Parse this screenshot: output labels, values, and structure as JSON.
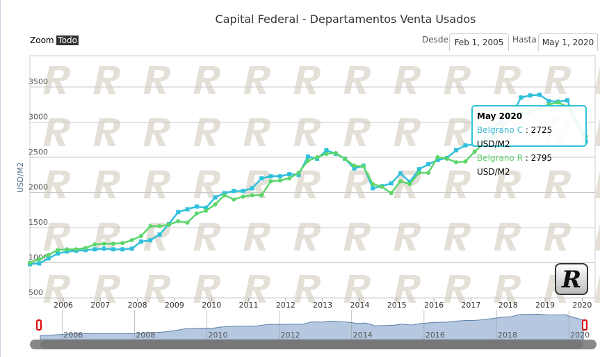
{
  "header": {
    "zoom_label": "Zoom",
    "zoom_all": "Todo",
    "from_label": "Desde",
    "from_value": "Feb 1, 2005",
    "to_label": "Hasta",
    "to_value": "May 1, 2020"
  },
  "tooltip": {
    "title": "May 2020",
    "rows": [
      {
        "name": "Belgrano C",
        "value": ": 2725 USD/M2",
        "color": "#3fb8d6"
      },
      {
        "name": "Belgrano R",
        "value": ": 2795 USD/M2",
        "color": "#5fd16a"
      }
    ]
  },
  "watermark_letter": "R",
  "chart_data": {
    "type": "line",
    "title": "Capital Federal - Departamentos Venta Usados",
    "ylabel": "USD/M2",
    "ylim": [
      500,
      3500
    ],
    "yticks": [
      500,
      1000,
      1500,
      2000,
      2500,
      3000,
      3500
    ],
    "xlim": [
      2005.1,
      2020.35
    ],
    "xticks": [
      "2006",
      "2007",
      "2008",
      "2009",
      "2010",
      "2011",
      "2012",
      "2013",
      "2014",
      "2015",
      "2016",
      "2017",
      "2018",
      "2019",
      "2020"
    ],
    "navigator_ticks": [
      "2006",
      "2008",
      "2010",
      "2012",
      "2014",
      "2016",
      "2018",
      "2020"
    ],
    "x_start": 2005.1,
    "x_step": 0.25,
    "series": [
      {
        "name": "Belgrano C",
        "color": "#2fc0db",
        "values": [
          980,
          990,
          1060,
          1130,
          1160,
          1170,
          1180,
          1190,
          1200,
          1190,
          1190,
          1200,
          1300,
          1320,
          1400,
          1550,
          1720,
          1760,
          1800,
          1780,
          1930,
          1990,
          2020,
          2020,
          2060,
          2200,
          2230,
          2230,
          2260,
          2250,
          2510,
          2480,
          2600,
          2550,
          2480,
          2340,
          2380,
          2060,
          2090,
          2130,
          2270,
          2150,
          2330,
          2400,
          2460,
          2490,
          2600,
          2670,
          2680,
          2760,
          2900,
          3050,
          3100,
          3350,
          3380,
          3390,
          3300,
          3290,
          3310,
          3000,
          2725
        ]
      },
      {
        "name": "Belgrano R",
        "color": "#5dd56b",
        "values": [
          1000,
          1050,
          1110,
          1180,
          1190,
          1190,
          1210,
          1260,
          1270,
          1270,
          1280,
          1320,
          1380,
          1520,
          1520,
          1540,
          1590,
          1570,
          1700,
          1740,
          1830,
          1960,
          1900,
          1940,
          1960,
          1960,
          2160,
          2170,
          2200,
          2280,
          2450,
          2500,
          2550,
          2560,
          2480,
          2380,
          2370,
          2120,
          2080,
          1990,
          2160,
          2120,
          2280,
          2280,
          2500,
          2480,
          2430,
          2440,
          2580,
          2700,
          2800,
          2950,
          3050,
          3120,
          3150,
          3200,
          3250,
          3280,
          3220,
          3000,
          2795
        ]
      }
    ]
  }
}
